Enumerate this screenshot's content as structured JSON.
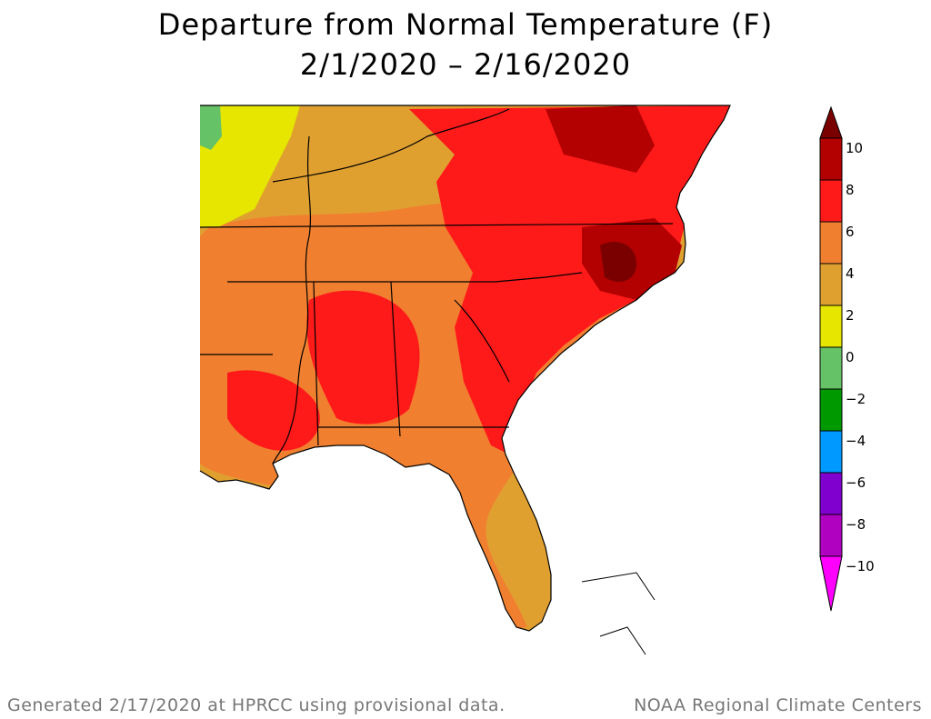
{
  "title": {
    "line1": "Departure from Normal Temperature (F)",
    "line2": "2/1/2020 – 2/16/2020"
  },
  "legend": {
    "labels": [
      "10",
      "8",
      "6",
      "4",
      "2",
      "0",
      "−2",
      "−4",
      "−6",
      "−8",
      "−10"
    ],
    "bins": [
      {
        "range": "above 10",
        "color": "#7a0000"
      },
      {
        "range": "8 to 10",
        "color": "#b30000"
      },
      {
        "range": "6 to 8",
        "color": "#ff1a1a"
      },
      {
        "range": "4 to 6",
        "color": "#f08030"
      },
      {
        "range": "2 to 4",
        "color": "#e0a030"
      },
      {
        "range": "0 to 2",
        "color": "#e6e600"
      },
      {
        "range": "-2 to 0",
        "color": "#66c266"
      },
      {
        "range": "-4 to -2",
        "color": "#009900"
      },
      {
        "range": "-6 to -4",
        "color": "#0099ff"
      },
      {
        "range": "-8 to -6",
        "color": "#8000d0"
      },
      {
        "range": "-10 to -8",
        "color": "#b000c0"
      },
      {
        "range": "below -10",
        "color": "#ff00ff"
      }
    ]
  },
  "footer": {
    "left": "Generated 2/17/2020 at HPRCC using provisional data.",
    "right": "NOAA Regional Climate Centers"
  }
}
